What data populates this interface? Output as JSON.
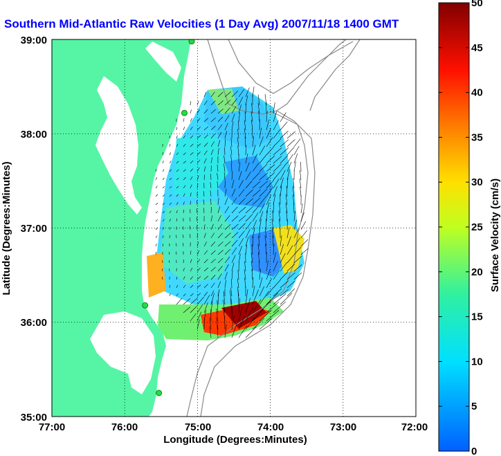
{
  "chart_data": {
    "type": "heatmap",
    "title": "Southern Mid-Atlantic Raw Velocities (1 Day Avg) 2007/11/18 1400 GMT",
    "xlabel": "Longitude (Degrees:Minutes)",
    "ylabel": "Latitude (Degrees:Minutes)",
    "x_ticks": [
      "77:00",
      "76:00",
      "75:00",
      "74:00",
      "73:00",
      "72:00"
    ],
    "y_ticks": [
      "39:00",
      "38:00",
      "37:00",
      "36:00",
      "35:00"
    ],
    "xlim": [
      -77,
      -72
    ],
    "ylim": [
      35,
      39
    ],
    "grid": true,
    "colorbar": {
      "label": "Surface Velocity (cm/s)",
      "min": 0,
      "max": 50,
      "ticks": [
        "0",
        "5",
        "10",
        "15",
        "20",
        "25",
        "30",
        "35",
        "40",
        "45",
        "50"
      ]
    },
    "colors": {
      "land": "#55F5A5",
      "title": "#0000FF",
      "contour": "#888888",
      "grid": "#000000",
      "station": "#22DD44"
    },
    "stations": [
      {
        "lon": -75.08,
        "lat": 38.98
      },
      {
        "lon": -75.18,
        "lat": 38.22
      },
      {
        "lon": -75.72,
        "lat": 36.18
      },
      {
        "lon": -75.53,
        "lat": 35.25
      }
    ]
  }
}
